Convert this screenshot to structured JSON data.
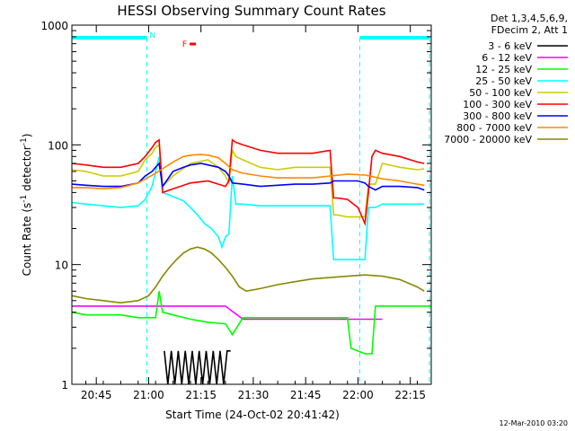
{
  "chart_data": {
    "type": "line",
    "title": "HESSI Observing Summary Count Rates",
    "xlabel": "Start Time (24-Oct-02 20:41:42)",
    "ylabel_main": "Count Rate (s",
    "ylabel_sup1": "-1",
    "ylabel_mid": " detector",
    "ylabel_sup2": "-1",
    "ylabel_end": ")",
    "yscale": "log",
    "ylim": [
      1,
      1000
    ],
    "xlim_minutes": [
      -4,
      99
    ],
    "x_ticks": [
      {
        "m": 3,
        "label": "20:45"
      },
      {
        "m": 18,
        "label": "21:00"
      },
      {
        "m": 33,
        "label": "21:15"
      },
      {
        "m": 48,
        "label": "21:30"
      },
      {
        "m": 63,
        "label": "21:45"
      },
      {
        "m": 78,
        "label": "22:00"
      },
      {
        "m": 93,
        "label": "22:15"
      }
    ],
    "y_ticks": [
      {
        "v": 1,
        "label": "1"
      },
      {
        "v": 10,
        "label": "10"
      },
      {
        "v": 100,
        "label": "100"
      },
      {
        "v": 1000,
        "label": "1000"
      }
    ],
    "legend_header": [
      "Det 1,3,4,5,6,9,",
      "FDecim 2, Att 1"
    ],
    "legend_position": "right",
    "series": [
      {
        "name": "3 - 6 keV",
        "color": "#000000",
        "x": [
          22.5,
          23.5,
          24.5,
          25.5,
          26.5,
          27.5,
          28.5,
          29.5,
          30.5,
          31.5,
          32.5,
          33.5,
          34.5,
          35.5,
          36.5,
          37.5,
          38.5,
          39.5,
          40.5,
          41.5
        ],
        "y": [
          1.9,
          1,
          1.9,
          1,
          1.9,
          1,
          1.9,
          1,
          1.9,
          1,
          1.9,
          1,
          1.9,
          1,
          1.9,
          1,
          1.9,
          1,
          1.9,
          1.9
        ]
      },
      {
        "name": "6 - 12 keV",
        "color": "#ff00ff",
        "x": [
          -4,
          0,
          5,
          10,
          15,
          20,
          25,
          30,
          35,
          40,
          45,
          50,
          55,
          60,
          65,
          70,
          75,
          80,
          85
        ],
        "y": [
          4.5,
          4.5,
          4.5,
          4.5,
          4.5,
          4.5,
          4.5,
          4.5,
          4.5,
          4.5,
          3.5,
          3.5,
          3.5,
          3.5,
          3.5,
          3.5,
          3.5,
          3.5,
          3.5
        ]
      },
      {
        "name": "12 - 25 keV",
        "color": "#00ff00",
        "x": [
          -4,
          0,
          5,
          10,
          15,
          20,
          21,
          22,
          25,
          30,
          35,
          40,
          42,
          45,
          50,
          55,
          60,
          65,
          70,
          75,
          76,
          80,
          82,
          83,
          85,
          90,
          95,
          99
        ],
        "y": [
          4,
          3.8,
          3.8,
          3.8,
          3.6,
          3.6,
          6,
          4,
          3.8,
          3.5,
          3.3,
          3.2,
          2.6,
          3.6,
          3.6,
          3.6,
          3.6,
          3.6,
          3.6,
          3.6,
          2,
          1.8,
          1.8,
          4.5,
          4.5,
          4.5,
          4.5,
          4.5
        ]
      },
      {
        "name": "25 - 50 keV",
        "color": "#00ffff",
        "x": [
          -4,
          0,
          5,
          10,
          15,
          17,
          19,
          20,
          21,
          22,
          24,
          26,
          28,
          30,
          32,
          34,
          36,
          38,
          39,
          40,
          41,
          42,
          43,
          45,
          50,
          55,
          60,
          65,
          70,
          71,
          72,
          75,
          80,
          81,
          83,
          85,
          90,
          95,
          97
        ],
        "y": [
          33,
          32,
          31,
          30,
          31,
          35,
          45,
          60,
          80,
          40,
          38,
          36,
          34,
          30,
          26,
          22,
          20,
          17,
          14,
          17,
          18,
          55,
          32,
          32,
          31,
          31,
          31,
          31,
          31,
          11,
          11,
          11,
          11,
          30,
          30,
          32,
          32,
          32,
          32
        ]
      },
      {
        "name": "50 - 100 keV",
        "color": "#cccc00",
        "x": [
          -4,
          0,
          5,
          10,
          15,
          17,
          19,
          20,
          21,
          22,
          25,
          30,
          35,
          38,
          40,
          41,
          42,
          43,
          45,
          50,
          55,
          60,
          65,
          70,
          71,
          72,
          75,
          80,
          81,
          83,
          85,
          90,
          95,
          97
        ],
        "y": [
          62,
          60,
          55,
          55,
          60,
          75,
          85,
          95,
          100,
          45,
          55,
          70,
          75,
          65,
          55,
          48,
          90,
          80,
          75,
          65,
          62,
          65,
          65,
          65,
          26,
          26,
          25,
          25,
          47,
          47,
          70,
          65,
          62,
          63
        ]
      },
      {
        "name": "100 - 300 keV",
        "color": "#ff0000",
        "x": [
          -4,
          0,
          5,
          10,
          15,
          17,
          19,
          20,
          21,
          22,
          25,
          30,
          35,
          40,
          41,
          42,
          43,
          45,
          50,
          55,
          60,
          65,
          70,
          71,
          72,
          75,
          78,
          80,
          81,
          82,
          83,
          85,
          90,
          95,
          97
        ],
        "y": [
          70,
          68,
          65,
          65,
          70,
          80,
          95,
          105,
          110,
          40,
          43,
          48,
          50,
          45,
          50,
          110,
          105,
          100,
          90,
          85,
          85,
          85,
          90,
          36,
          36,
          35,
          30,
          22,
          40,
          80,
          90,
          85,
          80,
          72,
          70
        ]
      },
      {
        "name": "300 - 800 keV",
        "color": "#0000ff",
        "x": [
          -4,
          0,
          5,
          10,
          15,
          17,
          19,
          20,
          21,
          22,
          25,
          28,
          30,
          33,
          35,
          38,
          40,
          41,
          42,
          45,
          50,
          55,
          60,
          65,
          70,
          71,
          75,
          78,
          80,
          81,
          83,
          85,
          90,
          95,
          97
        ],
        "y": [
          47,
          46,
          45,
          45,
          48,
          55,
          60,
          65,
          70,
          45,
          60,
          65,
          68,
          70,
          68,
          65,
          60,
          55,
          48,
          47,
          45,
          46,
          47,
          47,
          48,
          50,
          50,
          50,
          48,
          45,
          42,
          45,
          45,
          44,
          42
        ]
      },
      {
        "name": "800 - 7000 keV",
        "color": "#ff8800",
        "x": [
          -4,
          0,
          5,
          10,
          15,
          20,
          25,
          28,
          30,
          33,
          35,
          38,
          40,
          42,
          45,
          50,
          55,
          60,
          65,
          70,
          75,
          80,
          85,
          90,
          95,
          97
        ],
        "y": [
          44,
          44,
          43,
          44,
          48,
          58,
          72,
          80,
          82,
          83,
          82,
          78,
          70,
          62,
          58,
          55,
          53,
          53,
          53,
          55,
          57,
          56,
          52,
          50,
          47,
          46
        ]
      },
      {
        "name": "7000 - 20000 keV",
        "color": "#888800",
        "x": [
          -4,
          0,
          5,
          10,
          15,
          18,
          20,
          22,
          24,
          26,
          28,
          30,
          32,
          34,
          36,
          38,
          40,
          42,
          44,
          46,
          50,
          55,
          60,
          65,
          70,
          75,
          80,
          85,
          90,
          95,
          97
        ],
        "y": [
          5.5,
          5.2,
          5,
          4.8,
          5,
          5.5,
          6.5,
          8,
          9.5,
          11,
          12.5,
          13.5,
          14,
          13.5,
          12.5,
          11,
          9.5,
          8,
          6.5,
          6,
          6.3,
          6.8,
          7.2,
          7.6,
          7.8,
          8,
          8.2,
          8,
          7.5,
          6.5,
          6
        ]
      }
    ],
    "saa_intervals": [
      [
        -4,
        17.5
      ],
      [
        78.5,
        98.5
      ]
    ],
    "flag_marks": [
      {
        "label": "N",
        "m": 20.5,
        "color": "#00ffff"
      },
      {
        "label": "F",
        "m": 29.5,
        "color": "#ff0000"
      }
    ],
    "timestamp": "12-Mar-2010 03:20"
  }
}
